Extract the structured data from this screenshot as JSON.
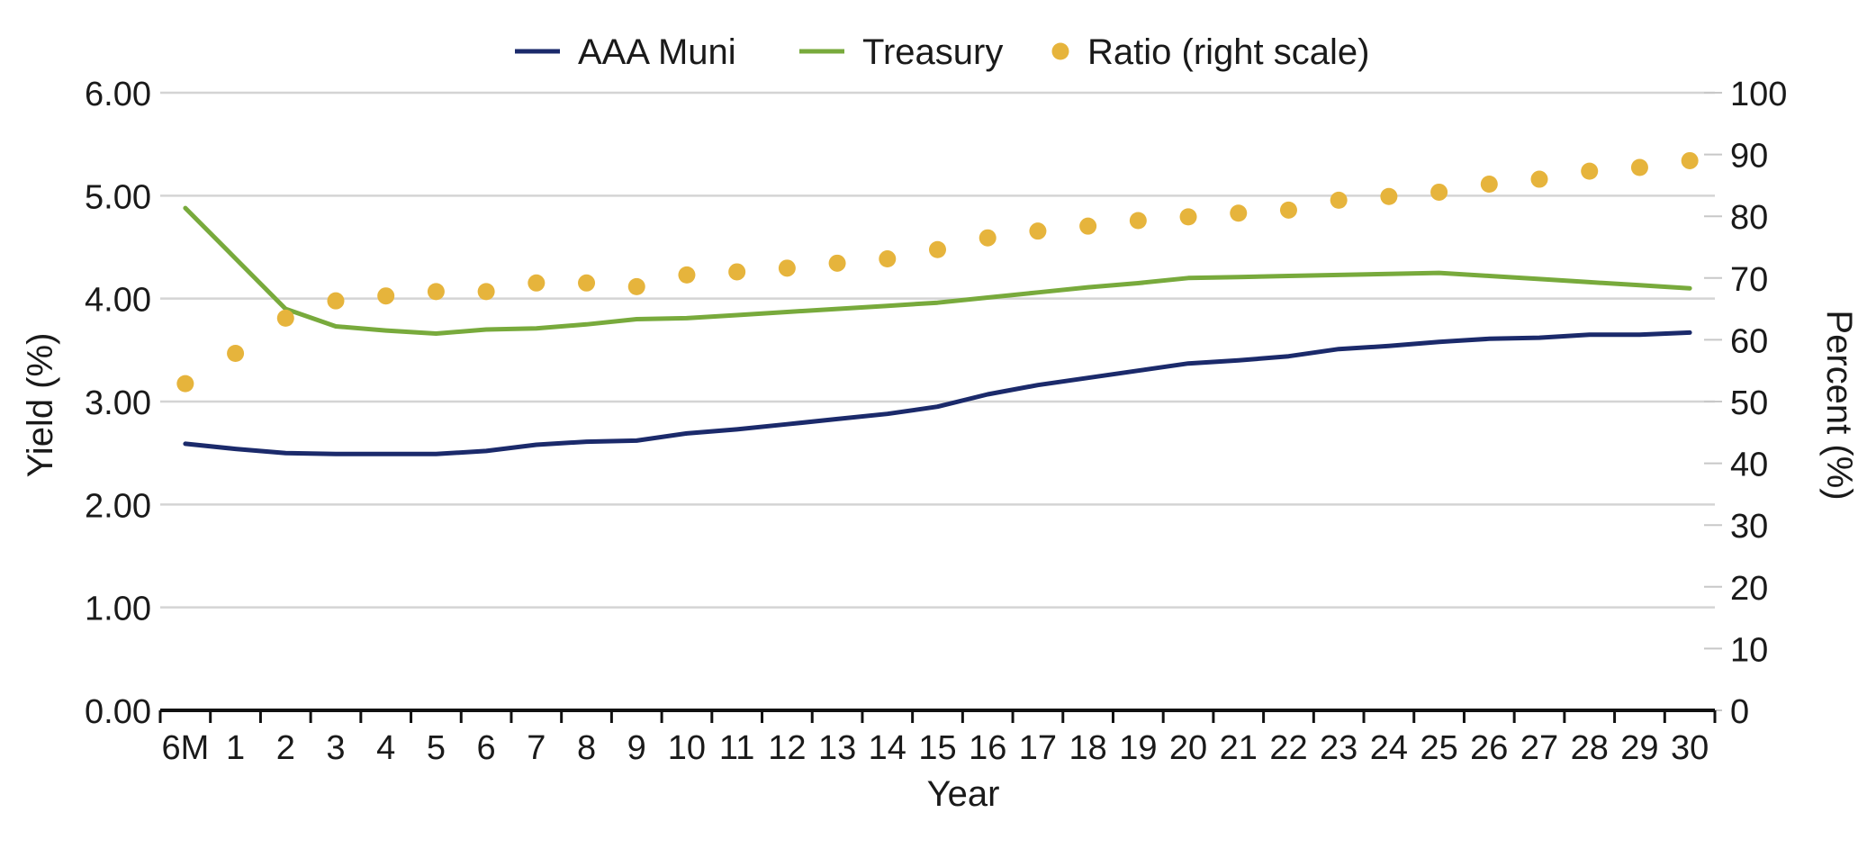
{
  "chart_data": {
    "type": "line",
    "title": "",
    "xlabel": "Year",
    "ylabel_left": "Yield (%)",
    "ylabel_right": "Percent (%)",
    "categories": [
      "6M",
      "1",
      "2",
      "3",
      "4",
      "5",
      "6",
      "7",
      "8",
      "9",
      "10",
      "11",
      "12",
      "13",
      "14",
      "15",
      "16",
      "17",
      "18",
      "19",
      "20",
      "21",
      "22",
      "23",
      "24",
      "25",
      "26",
      "27",
      "28",
      "29",
      "30"
    ],
    "y_left": {
      "min": 0,
      "max": 6,
      "ticks": [
        "0.00",
        "1.00",
        "2.00",
        "3.00",
        "4.00",
        "5.00",
        "6.00"
      ]
    },
    "y_right": {
      "min": 0,
      "max": 100,
      "ticks": [
        "0",
        "10",
        "20",
        "30",
        "40",
        "50",
        "60",
        "70",
        "80",
        "90",
        "100"
      ]
    },
    "grid": true,
    "legend": "top-center",
    "series": [
      {
        "name": "AAA Muni",
        "kind": "line",
        "axis": "left",
        "color": "#1b2a6b",
        "values": [
          2.59,
          2.54,
          2.5,
          2.49,
          2.49,
          2.49,
          2.52,
          2.58,
          2.61,
          2.62,
          2.69,
          2.73,
          2.78,
          2.83,
          2.88,
          2.95,
          3.07,
          3.16,
          3.23,
          3.3,
          3.37,
          3.4,
          3.44,
          3.51,
          3.54,
          3.58,
          3.61,
          3.62,
          3.65,
          3.65,
          3.67
        ]
      },
      {
        "name": "Treasury",
        "kind": "line",
        "axis": "left",
        "color": "#78aa3c",
        "values": [
          4.88,
          4.39,
          3.9,
          3.73,
          3.69,
          3.66,
          3.7,
          3.71,
          3.75,
          3.8,
          3.81,
          3.84,
          3.87,
          3.9,
          3.93,
          3.96,
          4.01,
          4.06,
          4.11,
          4.15,
          4.2,
          4.21,
          4.22,
          4.23,
          4.24,
          4.25,
          4.22,
          4.19,
          4.16,
          4.13,
          4.1
        ]
      },
      {
        "name": "Ratio (right scale)",
        "kind": "scatter",
        "axis": "right",
        "color": "#e6b43c",
        "values": [
          52.9,
          57.8,
          63.5,
          66.3,
          67.1,
          67.8,
          67.8,
          69.2,
          69.2,
          68.6,
          70.5,
          71.0,
          71.6,
          72.4,
          73.1,
          74.6,
          76.5,
          77.6,
          78.4,
          79.3,
          79.9,
          80.5,
          81.0,
          82.6,
          83.2,
          83.9,
          85.2,
          86.0,
          87.3,
          87.9,
          89.0
        ]
      }
    ]
  }
}
